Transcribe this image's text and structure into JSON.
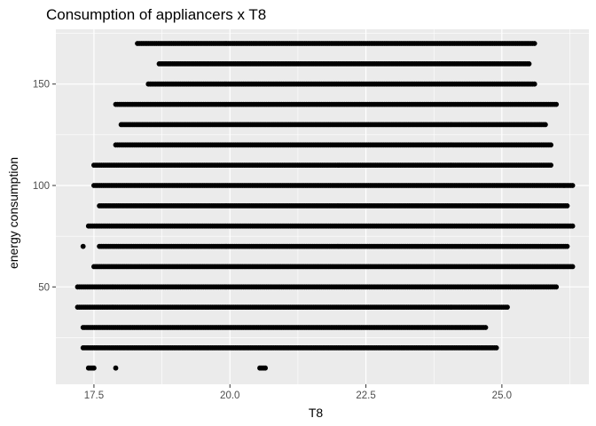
{
  "chart_data": {
    "type": "scatter",
    "title": "Consumption of appliancers x T8",
    "xlabel": "T8",
    "ylabel": "energy consumption",
    "xlim": [
      16.8,
      26.6
    ],
    "ylim": [
      2,
      177
    ],
    "x_ticks": [
      {
        "value": 17.5,
        "label": "17.5"
      },
      {
        "value": 20.0,
        "label": "20.0"
      },
      {
        "value": 22.5,
        "label": "22.5"
      },
      {
        "value": 25.0,
        "label": "25.0"
      }
    ],
    "y_ticks": [
      {
        "value": 50,
        "label": "50"
      },
      {
        "value": 100,
        "label": "100"
      },
      {
        "value": 150,
        "label": "150"
      }
    ],
    "grid": true,
    "legend": "none",
    "point_color": "#000000",
    "panel_background": "#ebebeb",
    "gridline_color": "#ffffff",
    "levels": [
      {
        "y": 10,
        "segments": [
          [
            17.4,
            17.5
          ],
          [
            17.9,
            17.9
          ],
          [
            20.55,
            20.65
          ]
        ]
      },
      {
        "y": 20,
        "segments": [
          [
            17.3,
            24.9
          ]
        ]
      },
      {
        "y": 30,
        "segments": [
          [
            17.3,
            24.7
          ]
        ]
      },
      {
        "y": 40,
        "segments": [
          [
            17.2,
            25.1
          ]
        ]
      },
      {
        "y": 50,
        "segments": [
          [
            17.2,
            26.0
          ]
        ]
      },
      {
        "y": 60,
        "segments": [
          [
            17.5,
            26.3
          ]
        ]
      },
      {
        "y": 70,
        "segments": [
          [
            17.3,
            17.3
          ],
          [
            17.6,
            26.2
          ]
        ]
      },
      {
        "y": 80,
        "segments": [
          [
            17.4,
            26.3
          ]
        ]
      },
      {
        "y": 90,
        "segments": [
          [
            17.6,
            26.2
          ]
        ]
      },
      {
        "y": 100,
        "segments": [
          [
            17.5,
            26.3
          ]
        ]
      },
      {
        "y": 110,
        "segments": [
          [
            17.5,
            25.9
          ]
        ]
      },
      {
        "y": 120,
        "segments": [
          [
            17.9,
            25.9
          ]
        ]
      },
      {
        "y": 130,
        "segments": [
          [
            18.0,
            25.8
          ]
        ]
      },
      {
        "y": 140,
        "segments": [
          [
            17.9,
            26.0
          ]
        ]
      },
      {
        "y": 150,
        "segments": [
          [
            18.5,
            25.6
          ]
        ]
      },
      {
        "y": 160,
        "segments": [
          [
            18.7,
            25.5
          ]
        ]
      },
      {
        "y": 170,
        "segments": [
          [
            18.3,
            25.6
          ]
        ]
      }
    ]
  }
}
